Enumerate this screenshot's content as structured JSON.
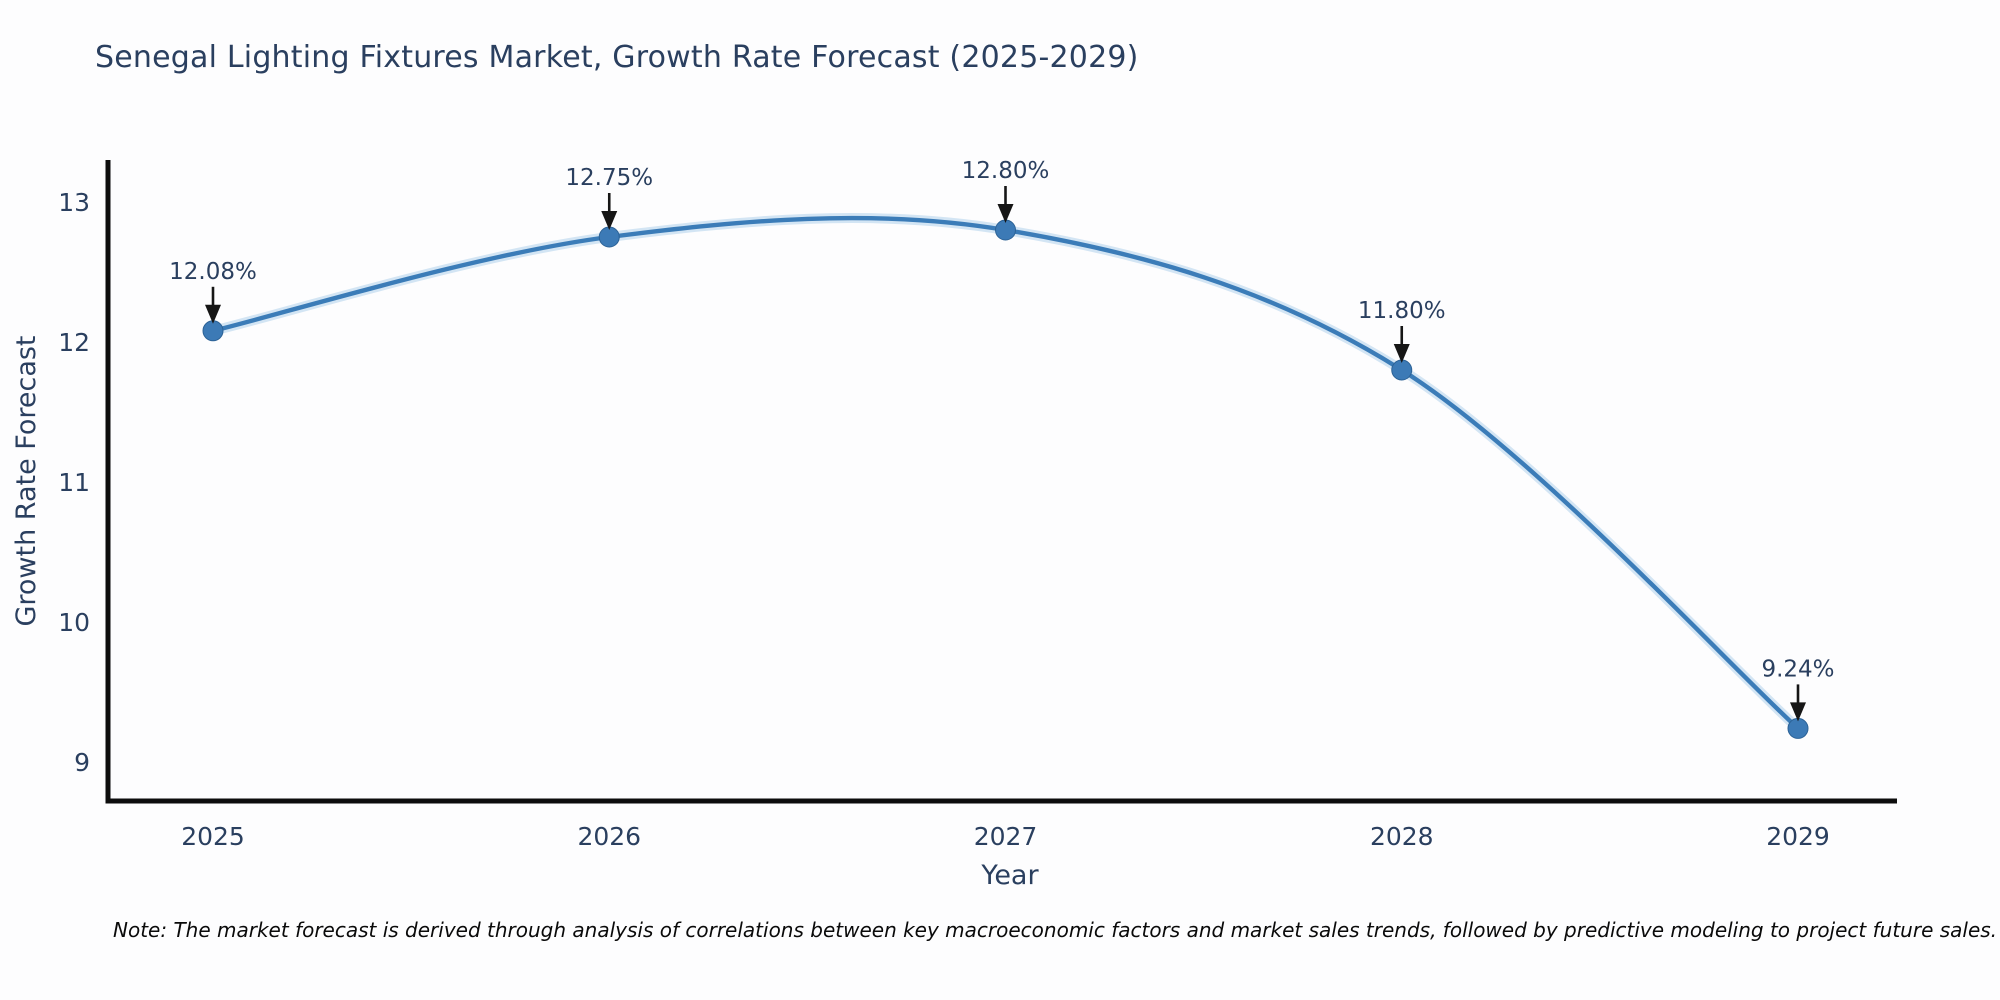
{
  "title": "Senegal Lighting Fixtures Market, Growth Rate Forecast (2025-2029)",
  "note": "Note: The market forecast is derived through analysis of correlations between key macroeconomic factors and market sales trends, followed by predictive modeling to project future sales.",
  "chart_data": {
    "type": "line",
    "line_shape": "spline",
    "title": "Senegal Lighting Fixtures Market, Growth Rate Forecast (2025-2029)",
    "xlabel": "Year",
    "ylabel": "Growth Rate Forecast",
    "categories": [
      "2025",
      "2026",
      "2027",
      "2028",
      "2029"
    ],
    "x": [
      2025,
      2026,
      2027,
      2028,
      2029
    ],
    "values": [
      12.08,
      12.75,
      12.8,
      11.8,
      9.24
    ],
    "point_labels": [
      "12.08%",
      "12.75%",
      "12.80%",
      "11.80%",
      "9.24%"
    ],
    "y_ticks": [
      13,
      12,
      11,
      10,
      9
    ],
    "ylim": [
      8.72,
      13.3
    ],
    "grid": false,
    "legend": "none",
    "annotations": "value label with down arrow above each point",
    "colors": {
      "line": "#3b7cb8",
      "line_halo": "#a9cde9",
      "marker": "#3c7ab6",
      "marker_edge": "#2c6296",
      "arrow": "#161616",
      "axis": "#0d0d0d",
      "text": "#2a3f5f"
    }
  }
}
